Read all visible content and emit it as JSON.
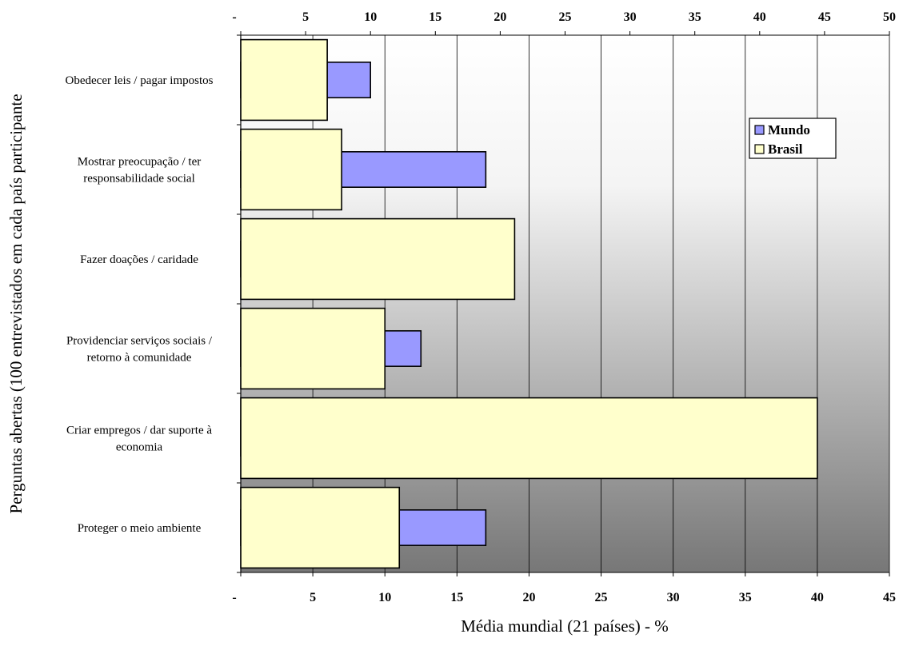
{
  "chart_data": {
    "type": "bar",
    "orientation": "horizontal",
    "categories": [
      [
        "Obedecer leis / pagar impostos"
      ],
      [
        "Mostrar preocupação / ter",
        "responsabilidade social"
      ],
      [
        "Fazer doações / caridade"
      ],
      [
        "Providenciar serviços sociais /",
        "retorno à comunidade"
      ],
      [
        "Criar empregos / dar suporte à",
        "economia"
      ],
      [
        "Proteger o meio ambiente"
      ]
    ],
    "series": [
      {
        "name": "Mundo",
        "values": [
          9,
          17,
          7,
          12.5,
          31,
          17
        ],
        "color": "#9999ff"
      },
      {
        "name": "Brasil",
        "values": [
          6,
          7,
          19,
          10,
          40,
          11
        ],
        "color": "#ffffcc"
      }
    ],
    "top_axis": {
      "range": [
        0,
        50
      ],
      "tick_labels": [
        "-",
        "5",
        "10",
        "15",
        "20",
        "25",
        "30",
        "35",
        "40",
        "45",
        "50"
      ]
    },
    "bottom_axis": {
      "range": [
        0,
        45
      ],
      "tick_labels": [
        "-",
        "5",
        "10",
        "15",
        "20",
        "25",
        "30",
        "35",
        "40",
        "45"
      ]
    },
    "xlabel": "Média mundial (21 países) - %",
    "ylabel": "Perguntas abertas (100 entrevistados em cada país participante",
    "legend": {
      "position": "right",
      "entries": [
        "Mundo",
        "Brasil"
      ]
    },
    "gridlines": true,
    "background": "vertical gradient white to gray",
    "colors": {
      "mundo": "#9999ff",
      "brasil": "#ffffcc",
      "outline": "#000000"
    }
  }
}
